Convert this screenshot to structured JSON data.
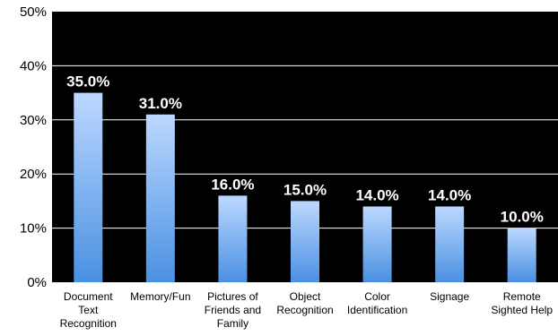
{
  "chart_data": {
    "type": "bar",
    "categories": [
      [
        "Document",
        "Text",
        "Recognition"
      ],
      [
        "Memory/Fun"
      ],
      [
        "Pictures of",
        "Friends and",
        "Family"
      ],
      [
        "Object",
        "Recognition"
      ],
      [
        "Color",
        "Identification"
      ],
      [
        "Signage"
      ],
      [
        "Remote",
        "Sighted Help"
      ]
    ],
    "values": [
      35.0,
      31.0,
      16.0,
      15.0,
      14.0,
      14.0,
      10.0
    ],
    "data_labels": [
      "35.0%",
      "31.0%",
      "16.0%",
      "15.0%",
      "14.0%",
      "14.0%",
      "10.0%"
    ],
    "y_ticks": [
      0,
      10,
      20,
      30,
      40,
      50
    ],
    "y_tick_labels": [
      "0%",
      "10%",
      "20%",
      "30%",
      "40%",
      "50%"
    ],
    "ylim": [
      0,
      50
    ],
    "title": "",
    "xlabel": "",
    "ylabel": "",
    "grid": true,
    "legend": "none",
    "colors": {
      "plot_background": "#000000",
      "gridline": "#ffffff",
      "bar_top": "#bcd8ff",
      "bar_bottom": "#4a90e2",
      "data_label": "#ffffff",
      "axis_text": "#000000"
    }
  }
}
